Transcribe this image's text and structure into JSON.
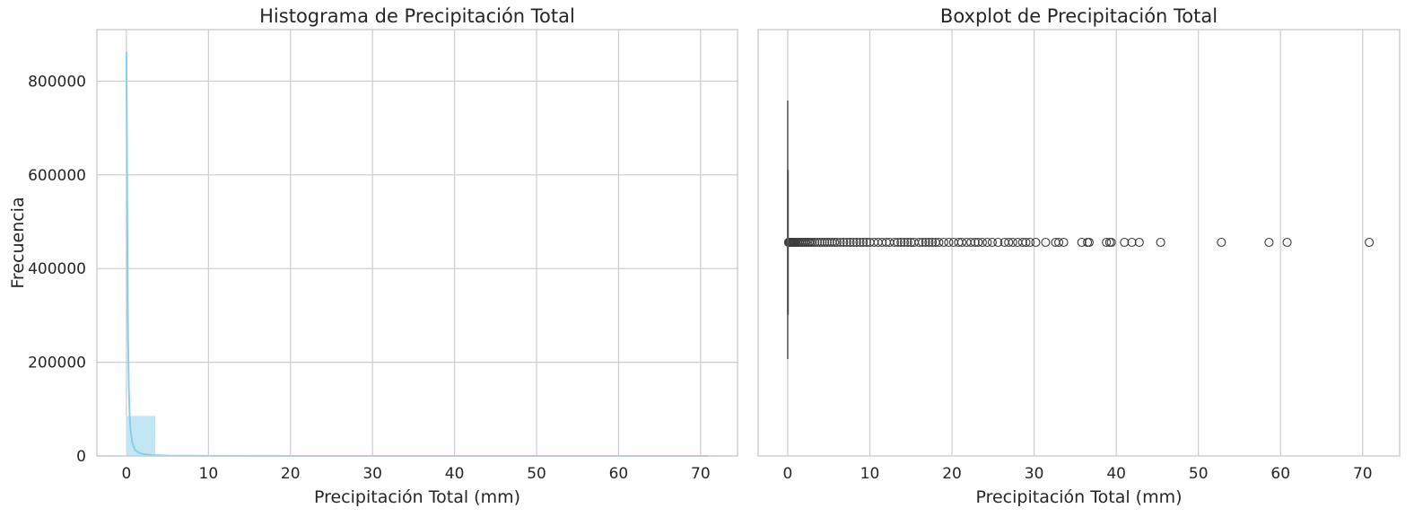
{
  "chart_data": [
    {
      "type": "histogram",
      "title": "Histograma de Precipitación Total",
      "xlabel": "Precipitación Total (mm)",
      "ylabel": "Frecuencia",
      "xlim": [
        -3.6,
        74.5
      ],
      "ylim": [
        0,
        910000
      ],
      "xticks": [
        0,
        10,
        20,
        30,
        40,
        50,
        60,
        70
      ],
      "yticks": [
        0,
        200000,
        400000,
        600000,
        800000
      ],
      "grid": true,
      "colors": {
        "bars": "#87ceeb",
        "kde": "#87ceeb"
      },
      "bins": [
        {
          "x0": 0,
          "x1": 3.55,
          "count": 86000
        },
        {
          "x0": 3.55,
          "x1": 7.1,
          "count": 2500
        },
        {
          "x0": 7.1,
          "x1": 10.65,
          "count": 700
        },
        {
          "x0": 10.65,
          "x1": 14.2,
          "count": 300
        },
        {
          "x0": 14.2,
          "x1": 17.75,
          "count": 150
        },
        {
          "x0": 17.75,
          "x1": 21.3,
          "count": 80
        },
        {
          "x0": 21.3,
          "x1": 24.85,
          "count": 50
        },
        {
          "x0": 24.85,
          "x1": 28.4,
          "count": 40
        },
        {
          "x0": 28.4,
          "x1": 31.95,
          "count": 30
        },
        {
          "x0": 31.95,
          "x1": 35.5,
          "count": 15
        },
        {
          "x0": 35.5,
          "x1": 39.05,
          "count": 10
        },
        {
          "x0": 39.05,
          "x1": 42.6,
          "count": 6
        },
        {
          "x0": 42.6,
          "x1": 46.15,
          "count": 3
        },
        {
          "x0": 46.15,
          "x1": 49.7,
          "count": 0
        },
        {
          "x0": 49.7,
          "x1": 53.25,
          "count": 1
        },
        {
          "x0": 53.25,
          "x1": 56.8,
          "count": 0
        },
        {
          "x0": 56.8,
          "x1": 60.35,
          "count": 1
        },
        {
          "x0": 60.35,
          "x1": 63.9,
          "count": 1
        },
        {
          "x0": 63.9,
          "x1": 67.45,
          "count": 0
        },
        {
          "x0": 67.45,
          "x1": 71.0,
          "count": 1
        }
      ],
      "kde": {
        "x": [
          0,
          0.05,
          0.1,
          0.15,
          0.2,
          0.3,
          0.4,
          0.5,
          0.7,
          1.0,
          1.5,
          2,
          3,
          5,
          10,
          20,
          40,
          71
        ],
        "y": [
          862000,
          700000,
          520000,
          360000,
          250000,
          140000,
          85000,
          55000,
          30000,
          14000,
          7000,
          4000,
          2000,
          800,
          200,
          50,
          10,
          0
        ]
      }
    },
    {
      "type": "boxplot",
      "title": "Boxplot de Precipitación Total",
      "xlabel": "Precipitación Total (mm)",
      "xlim": [
        -3.6,
        74.5
      ],
      "xticks": [
        0,
        10,
        20,
        30,
        40,
        50,
        60,
        70
      ],
      "grid": true,
      "colors": {
        "box": "#87ceeb",
        "lines": "#555555"
      },
      "box": {
        "q1": 0,
        "median": 0,
        "q3": 0,
        "whisker_low": 0,
        "whisker_high": 0
      },
      "outliers": [
        0.1,
        0.2,
        0.3,
        0.4,
        0.5,
        0.6,
        0.7,
        0.8,
        0.9,
        1.0,
        1.2,
        1.4,
        1.6,
        1.8,
        2.0,
        2.2,
        2.4,
        2.6,
        2.8,
        3.0,
        3.3,
        3.6,
        3.9,
        4.2,
        4.5,
        4.8,
        5.1,
        5.4,
        5.7,
        6.0,
        6.4,
        6.8,
        7.2,
        7.6,
        8.0,
        8.4,
        8.8,
        9.2,
        9.6,
        10.0,
        10.5,
        11.0,
        11.5,
        12.0,
        12.4,
        13.0,
        13.4,
        13.8,
        14.2,
        14.6,
        15.0,
        15.4,
        16.0,
        16.4,
        16.8,
        17.2,
        17.6,
        18.0,
        18.4,
        19.0,
        19.6,
        20.2,
        20.8,
        21.2,
        21.8,
        22.3,
        22.8,
        23.2,
        23.7,
        24.3,
        24.9,
        25.6,
        26.4,
        26.9,
        27.4,
        28.0,
        28.6,
        29.0,
        29.5,
        30.2,
        31.4,
        32.6,
        33.0,
        33.6,
        35.8,
        36.5,
        36.7,
        38.8,
        39.2,
        39.4,
        41.0,
        41.9,
        42.8,
        45.4,
        52.8,
        58.6,
        60.8,
        70.8
      ]
    }
  ]
}
